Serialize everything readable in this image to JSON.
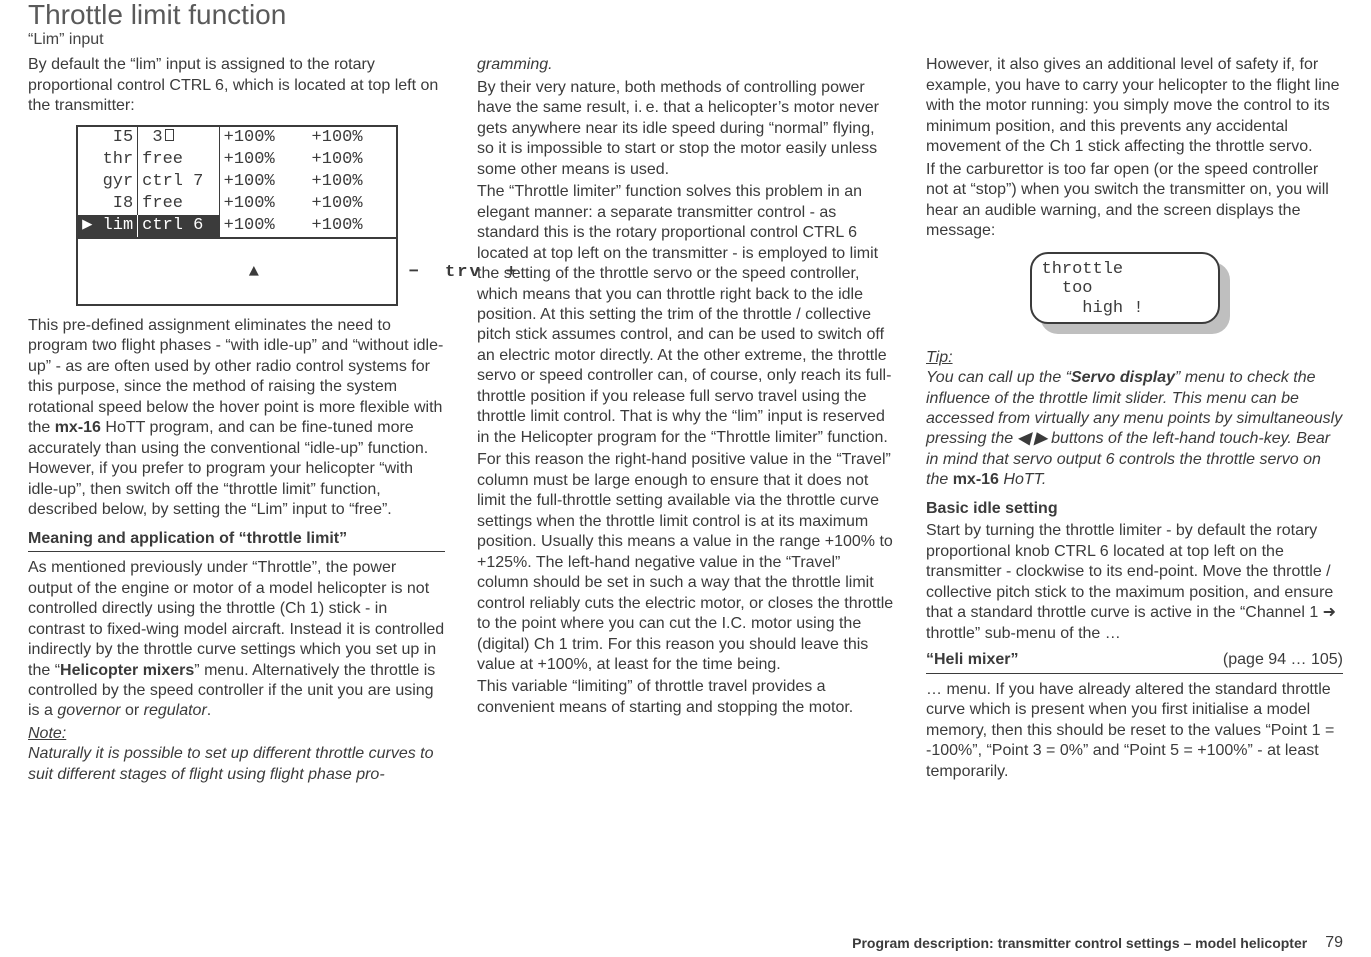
{
  "header": {
    "title": "Throttle limit function",
    "subtitle": "“Lim” input"
  },
  "colors": {
    "text": "#3b3b3b",
    "titleGrey": "#5a5a5a",
    "rule": "#3b3b3b",
    "lcdShadow": "#bfbfbf",
    "bg": "#ffffff"
  },
  "typography": {
    "titleFontSize": 28,
    "bodyFontSize": 16,
    "monoFontSize": 17,
    "footerFontSize": 14
  },
  "table": {
    "rows": [
      {
        "c1": "I5",
        "c1Extra": "glyph",
        "c2": " 3",
        "c3": "+100%",
        "c4": "+100%",
        "hl": false
      },
      {
        "c1": "thr",
        "c2": "free",
        "c3": "+100%",
        "c4": "+100%",
        "hl": false
      },
      {
        "c1": "gyr",
        "c2": "ctrl 7",
        "c3": "+100%",
        "c4": "+100%",
        "hl": false
      },
      {
        "c1": "I8",
        "c2": "free",
        "c3": "+100%",
        "c4": "+100%",
        "hl": false
      },
      {
        "c1": "▶ lim",
        "c2": "ctrl 6",
        "c3": "+100%",
        "c4": "+100%",
        "hl": true
      }
    ],
    "footerLeft": "▲",
    "footerRight": "−  trv  +"
  },
  "lcd": {
    "line1": "throttle",
    "line2": "  too",
    "line3": "    high !"
  },
  "col1": {
    "p1": "By default the “lim” input is assigned to the rotary proportional control CTRL 6, which is located at top left on the transmitter:",
    "p2a": "This pre-defined assignment eliminates the need to program two flight phases - “with idle-up” and “without idle-up” - as are often used by other radio control systems for this purpose, since the method of raising the system rotational speed below the hover point is more flexible with the ",
    "brand": "mx-16",
    "p2b": " HoTT program, and can be fine-tuned more accurately than using the conventional “idle-up” function. However, if you prefer to program your helicopter “with idle-up”, then switch off the “throttle limit” function, described below, by setting the “Lim” input to “free”.",
    "secHead": "Meaning and application of “throttle limit”",
    "p3a": "As mentioned previously under “Throttle”, the power output of the engine or motor of a model helicopter is not controlled directly using the throttle (Ch 1) stick - in contrast to fixed-wing model aircraft. Instead it is controlled indirectly by the throttle curve settings which you set up in the “",
    "p3bold": "Helicopter mixers",
    "p3b": "” menu. Alternatively the throttle is controlled by the speed controller if the unit you are using is a ",
    "p3i1": "governor",
    "p3mid": " or ",
    "p3i2": "regulator",
    "p3end": ".",
    "noteHead": "Note:",
    "noteBody": "Naturally it is possible to set up different throttle curves to suit different stages of flight using flight phase pro-"
  },
  "col2": {
    "contLine": "gramming.",
    "p1": "By their very nature, both methods of controlling power have the same result, i. e. that a helicopter’s motor never gets anywhere near its idle speed during “normal” flying, so it is impossible to start or stop the motor easily unless some other means is used.",
    "p2": "The “Throttle limiter” function solves this problem in an elegant manner: a separate transmitter control - as standard this is the rotary proportional control CTRL 6 located at top left on the transmitter - is employed to limit the setting of the throttle servo or the speed controller, which means that you can throttle right back to the idle position. At this setting the trim of the throttle / collective pitch stick assumes control, and can be used to switch off an electric motor directly. At the other extreme, the throttle servo or speed controller can, of course, only reach its full-throttle position if you release full servo travel using the throttle limit control. That is why the “lim” input is reserved in the Helicopter program for the “Throttle limiter” function.",
    "p3": "For this reason the right-hand positive value in the “Travel” column must be large enough to ensure that it does not limit the full-throttle setting available via the throttle curve settings when the throttle limit control is at its maximum position. Usually this means a value in the range +100% to +125%. The left-hand negative value in the “Travel” column should be set in such a way that the throttle limit control reliably cuts the electric motor, or closes the throttle to the point where you can cut the I.C. motor using the (digital) Ch 1 trim. For this reason you should leave this value at +100%, at least for the time being.",
    "p4": "This variable “limiting” of throttle travel provides a convenient means of starting and stopping the motor."
  },
  "col3": {
    "p1": "However, it also gives an additional level of safety if, for example, you have to carry your helicopter to the flight line with the motor running: you simply move the control to its minimum position, and this prevents any accidental movement of the Ch 1 stick affecting the throttle servo.",
    "p2": "If the carburettor is too far open (or the speed controller not at “stop”) when you switch the transmitter on, you will hear an audible warning, and the screen displays the message:",
    "tipHead": "Tip:",
    "tipBody1": "You can call up the “",
    "tipBold": "Servo display",
    "tipBody2": "” menu to check the influence of the throttle limit slider. This menu can be accessed from virtually any menu points by simultaneously pressing the ",
    "tipArrows": "◀ ▶",
    "tipBody3": " buttons of the left-hand touch-key. Bear in mind that servo output 6 controls the throttle servo on the ",
    "tipBrand": "mx-16",
    "tipBody4": " HoTT.",
    "basicHead": "Basic idle setting",
    "p3": "Start by turning the throttle limiter - by default the rotary proportional knob CTRL 6 located at top left on the transmitter - clockwise to its end-point. Move the throttle / collective pitch stick to the maximum position, and ensure that a standard throttle curve is active in the “Channel 1 ➜ throttle” sub-menu of the …",
    "heliLeft": "“Heli mixer”",
    "heliRight": "(page 94 … 105)",
    "p4": "… menu. If you have already altered the standard throttle curve which is present when you first initialise a model memory, then this should be reset to the values “Point 1 = -100%”, “Point 3 = 0%” and “Point 5 = +100%” - at least temporarily."
  },
  "footer": {
    "text": "Program description: transmitter control settings – model helicopter",
    "page": "79"
  }
}
